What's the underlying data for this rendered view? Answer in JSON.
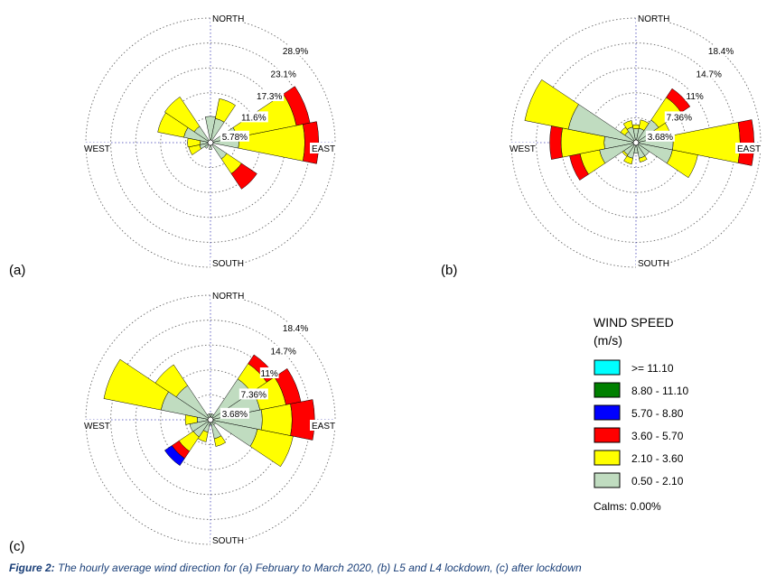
{
  "chart_data": [
    {
      "type": "windrose",
      "panel_label": "(a)",
      "direction_labels": {
        "north": "NORTH",
        "south": "SOUTH",
        "east": "EAST",
        "west": "WEST"
      },
      "ring_labels": [
        "5.78%",
        "11.6%",
        "17.3%",
        "23.1%",
        "28.9%"
      ],
      "ring_max": 28.9,
      "directions_deg": [
        0,
        22.5,
        45,
        67.5,
        90,
        112.5,
        135,
        157.5,
        180,
        202.5,
        225,
        247.5,
        270,
        292.5,
        315,
        337.5
      ],
      "frequencies": [
        {
          "direction": 0,
          "bands": [
            5.6,
            0.0
          ]
        },
        {
          "direction": 22.5,
          "bands": [
            5.2,
            4.8
          ]
        },
        {
          "direction": 45,
          "bands": [
            0.0,
            0.0
          ]
        },
        {
          "direction": 67.5,
          "bands": [
            5.8,
            14.3,
            3.3
          ]
        },
        {
          "direction": 90,
          "bands": [
            6.1,
            15.6,
            3.3
          ]
        },
        {
          "direction": 112.5,
          "bands": [
            0.0,
            0.0
          ]
        },
        {
          "direction": 135,
          "bands": [
            4.0,
            4.2,
            4.4
          ]
        },
        {
          "direction": 157.5,
          "bands": [
            0.0,
            0.0
          ]
        },
        {
          "direction": 180,
          "bands": [
            1.0
          ]
        },
        {
          "direction": 202.5,
          "bands": [
            0.0,
            0.0
          ]
        },
        {
          "direction": 225,
          "bands": [
            1.0
          ]
        },
        {
          "direction": 247.5,
          "bands": [
            2.0,
            2.6
          ]
        },
        {
          "direction": 270,
          "bands": [
            1.8,
            3.0
          ]
        },
        {
          "direction": 292.5,
          "bands": [
            5.8,
            6.3
          ]
        },
        {
          "direction": 315,
          "bands": [
            4.0,
            8.4
          ]
        },
        {
          "direction": 337.5,
          "bands": [
            0.0,
            0.0
          ]
        }
      ]
    },
    {
      "type": "windrose",
      "panel_label": "(b)",
      "direction_labels": {
        "north": "NORTH",
        "south": "SOUTH",
        "east": "EAST",
        "west": "WEST"
      },
      "ring_labels": [
        "3.68%",
        "7.36%",
        "11%",
        "14.7%",
        "18.4%"
      ],
      "ring_max": 18.4,
      "directions_deg": [
        0,
        22.5,
        45,
        67.5,
        90,
        112.5,
        135,
        157.5,
        180,
        202.5,
        225,
        247.5,
        270,
        292.5,
        315,
        337.5
      ],
      "frequencies": [
        {
          "direction": 0,
          "bands": [
            1.7,
            0.6
          ]
        },
        {
          "direction": 22.5,
          "bands": [
            1.8,
            1.3
          ]
        },
        {
          "direction": 45,
          "bands": [
            3.7,
            4.1,
            1.6
          ]
        },
        {
          "direction": 67.5,
          "bands": [
            2.3,
            2.6
          ]
        },
        {
          "direction": 90,
          "bands": [
            5.2,
            10.1,
            2.1
          ]
        },
        {
          "direction": 112.5,
          "bands": [
            5.2,
            3.9
          ]
        },
        {
          "direction": 135,
          "bands": [
            2.0,
            0.0
          ]
        },
        {
          "direction": 157.5,
          "bands": [
            2.0,
            0.6
          ]
        },
        {
          "direction": 180,
          "bands": [
            1.2
          ]
        },
        {
          "direction": 202.5,
          "bands": [
            2.0,
            0.9
          ]
        },
        {
          "direction": 225,
          "bands": [
            1.8,
            0.3
          ]
        },
        {
          "direction": 247.5,
          "bands": [
            5.2,
            3.0,
            1.6
          ]
        },
        {
          "direction": 270,
          "bands": [
            4.4,
            6.5,
            1.7
          ]
        },
        {
          "direction": 292.5,
          "bands": [
            10.0,
            6.7
          ]
        },
        {
          "direction": 315,
          "bands": [
            1.6,
            0.8
          ]
        },
        {
          "direction": 337.5,
          "bands": [
            2.0,
            1.0
          ]
        }
      ]
    },
    {
      "type": "windrose",
      "panel_label": "(c)",
      "direction_labels": {
        "north": "NORTH",
        "south": "SOUTH",
        "east": "EAST",
        "west": "WEST"
      },
      "ring_labels": [
        "3.68%",
        "7.36%",
        "11%",
        "14.7%",
        "18.4%"
      ],
      "ring_max": 18.4,
      "directions_deg": [
        0,
        22.5,
        45,
        67.5,
        90,
        112.5,
        135,
        157.5,
        180,
        202.5,
        225,
        247.5,
        270,
        292.5,
        315,
        337.5
      ],
      "frequencies": [
        {
          "direction": 0,
          "bands": [
            0.5
          ]
        },
        {
          "direction": 22.5,
          "bands": [
            0.5
          ]
        },
        {
          "direction": 45,
          "bands": [
            7.0,
            2.8,
            1.6
          ]
        },
        {
          "direction": 67.5,
          "bands": [
            7.2,
            4.0,
            2.3
          ]
        },
        {
          "direction": 90,
          "bands": [
            7.4,
            4.5,
            3.4
          ]
        },
        {
          "direction": 112.5,
          "bands": [
            6.8,
            5.5
          ]
        },
        {
          "direction": 135,
          "bands": [
            0.5
          ]
        },
        {
          "direction": 157.5,
          "bands": [
            2.5,
            1.2
          ]
        },
        {
          "direction": 180,
          "bands": [
            0.4
          ]
        },
        {
          "direction": 202.5,
          "bands": [
            1.5,
            1.5
          ]
        },
        {
          "direction": 225,
          "bands": [
            2.7,
            2.6,
            1.3,
            1.3
          ]
        },
        {
          "direction": 247.5,
          "bands": [
            2.8,
            0.0
          ]
        },
        {
          "direction": 270,
          "bands": [
            1.6,
            1.8
          ]
        },
        {
          "direction": 292.5,
          "bands": [
            7.2,
            8.8
          ]
        },
        {
          "direction": 315,
          "bands": [
            5.8,
            3.8
          ]
        },
        {
          "direction": 337.5,
          "bands": [
            0.5
          ]
        }
      ]
    }
  ],
  "legend": {
    "title_line1": "WIND SPEED",
    "title_line2": "(m/s)",
    "items": [
      {
        "label": ">= 11.10",
        "color": "#00ffff"
      },
      {
        "label": "8.80 - 11.10",
        "color": "#008000"
      },
      {
        "label": "5.70 - 8.80",
        "color": "#0000ff"
      },
      {
        "label": "3.60 - 5.70",
        "color": "#ff0000"
      },
      {
        "label": "2.10 - 3.60",
        "color": "#ffff00"
      },
      {
        "label": "0.50 - 2.10",
        "color": "#c0dcc0"
      }
    ],
    "calms": "Calms: 0.00%"
  },
  "band_colors": [
    "#c0dcc0",
    "#ffff00",
    "#ff0000",
    "#0000ff",
    "#008000",
    "#00ffff"
  ],
  "caption": {
    "figure_number": "Figure 2:",
    "text": " The hourly average wind direction for (a) February to March 2020, (b) L5 and L4 lockdown, (c) after lockdown"
  }
}
